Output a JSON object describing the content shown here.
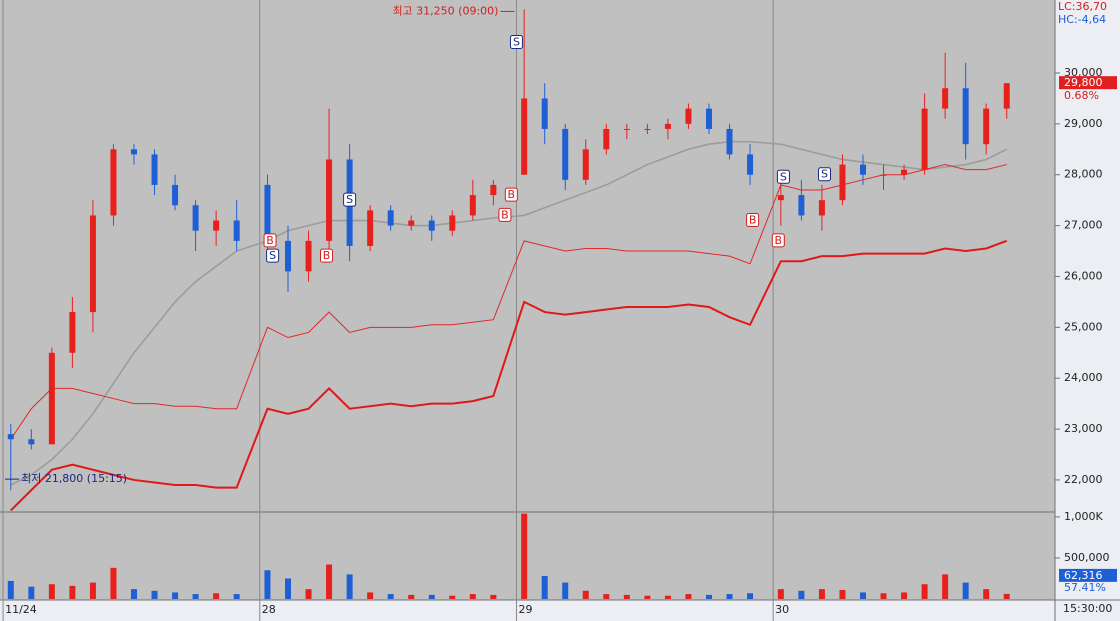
{
  "chart_data": {
    "type": "candlestick",
    "x": [
      0.03,
      0.11,
      0.19,
      0.27,
      0.35,
      0.43,
      0.51,
      0.59,
      0.67,
      0.75,
      0.83,
      0.91,
      1.03,
      1.11,
      1.19,
      1.27,
      1.35,
      1.43,
      1.51,
      1.59,
      1.67,
      1.75,
      1.83,
      1.91,
      2.03,
      2.11,
      2.19,
      2.27,
      2.35,
      2.43,
      2.51,
      2.59,
      2.67,
      2.75,
      2.83,
      2.91,
      3.03,
      3.11,
      3.19,
      3.27,
      3.35,
      3.43,
      3.51,
      3.59,
      3.67,
      3.75,
      3.83,
      3.91
    ],
    "open": [
      22900,
      22800,
      22700,
      24500,
      25300,
      27200,
      28500,
      28400,
      27800,
      27400,
      26900,
      27100,
      27800,
      26700,
      26100,
      26700,
      28300,
      26600,
      27300,
      27000,
      27100,
      26900,
      27200,
      27600,
      28000,
      29500,
      28900,
      27900,
      28500,
      28900,
      28900,
      28900,
      29000,
      29300,
      28900,
      28400,
      27500,
      27600,
      27200,
      27500,
      28200,
      28000,
      28000,
      28100,
      29300,
      29700,
      28600,
      29300
    ],
    "high": [
      23100,
      23000,
      24600,
      25600,
      27500,
      28600,
      28600,
      28500,
      28000,
      27500,
      27300,
      27500,
      28000,
      27000,
      26900,
      29300,
      28600,
      27400,
      27400,
      27200,
      27200,
      27300,
      27900,
      27900,
      31250,
      29800,
      29000,
      28700,
      29000,
      29000,
      29000,
      29100,
      29400,
      29400,
      29000,
      28600,
      28000,
      27900,
      27800,
      28400,
      28400,
      28200,
      28200,
      29600,
      30400,
      30200,
      29400,
      29800
    ],
    "low": [
      21800,
      22600,
      22700,
      24200,
      24900,
      27000,
      28200,
      27600,
      27300,
      26500,
      26600,
      26500,
      26400,
      25700,
      25900,
      26500,
      26300,
      26500,
      26900,
      26900,
      26700,
      26800,
      27100,
      27400,
      28000,
      28600,
      27700,
      27800,
      28400,
      28700,
      28800,
      28700,
      28900,
      28800,
      28300,
      27800,
      27000,
      27100,
      26900,
      27400,
      27800,
      27700,
      27900,
      28000,
      29100,
      28300,
      28400,
      29100
    ],
    "close": [
      22800,
      22700,
      24500,
      25300,
      27200,
      28500,
      28400,
      27800,
      27400,
      26900,
      27100,
      26700,
      26700,
      26100,
      26700,
      28300,
      26600,
      27300,
      27000,
      27100,
      26900,
      27200,
      27600,
      27800,
      29500,
      28900,
      27900,
      28500,
      28900,
      28900,
      28900,
      29000,
      29300,
      28900,
      28400,
      28000,
      27600,
      27200,
      27500,
      28200,
      28000,
      28000,
      28100,
      29300,
      29700,
      28600,
      29300,
      29800
    ],
    "volume": [
      220000,
      150000,
      180000,
      160000,
      200000,
      380000,
      120000,
      100000,
      80000,
      60000,
      70000,
      60000,
      350000,
      250000,
      120000,
      420000,
      300000,
      80000,
      60000,
      50000,
      50000,
      40000,
      60000,
      50000,
      1040000,
      280000,
      200000,
      100000,
      60000,
      50000,
      40000,
      40000,
      60000,
      50000,
      60000,
      70000,
      120000,
      100000,
      120000,
      110000,
      80000,
      70000,
      80000,
      180000,
      300000,
      200000,
      120000,
      62316
    ],
    "lines": [
      {
        "color": "#9c9c9c",
        "values": [
          21900,
          22100,
          22400,
          22800,
          23300,
          23900,
          24500,
          25000,
          25500,
          25900,
          26200,
          26500,
          26700,
          26900,
          27000,
          27100,
          27100,
          27100,
          27050,
          27000,
          27000,
          27050,
          27100,
          27150,
          27200,
          27350,
          27500,
          27650,
          27800,
          28000,
          28200,
          28350,
          28500,
          28600,
          28650,
          28650,
          28600,
          28500,
          28400,
          28300,
          28250,
          28200,
          28150,
          28100,
          28150,
          28200,
          28300,
          28500
        ]
      },
      {
        "color": "#e02828",
        "values": [
          22800,
          23400,
          23800,
          23800,
          23700,
          23600,
          23500,
          23500,
          23450,
          23450,
          23400,
          23400,
          25000,
          24800,
          24900,
          25300,
          24900,
          25000,
          25000,
          25000,
          25050,
          25050,
          25100,
          25150,
          26700,
          26600,
          26500,
          26550,
          26550,
          26500,
          26500,
          26500,
          26500,
          26450,
          26400,
          26250,
          27800,
          27700,
          27700,
          27800,
          27900,
          28000,
          28000,
          28100,
          28200,
          28100,
          28100,
          28200
        ]
      },
      {
        "color": "#e01818",
        "values": [
          21400,
          21800,
          22200,
          22300,
          22200,
          22100,
          22000,
          21950,
          21900,
          21900,
          21850,
          21850,
          23400,
          23300,
          23400,
          23800,
          23400,
          23450,
          23500,
          23450,
          23500,
          23500,
          23550,
          23650,
          25500,
          25300,
          25250,
          25300,
          25350,
          25400,
          25400,
          25400,
          25450,
          25400,
          25200,
          25050,
          26300,
          26300,
          26400,
          26400,
          26450,
          26450,
          26450,
          26450,
          26550,
          26500,
          26550,
          26700
        ]
      }
    ],
    "up_color": "#e8201c",
    "down_color": "#1f5fd6",
    "signals": [
      {
        "label": "S",
        "x": 2.0,
        "price": 30600
      },
      {
        "label": "B",
        "x": 1.04,
        "price": 26700
      },
      {
        "label": "S",
        "x": 1.05,
        "price": 26400
      },
      {
        "label": "B",
        "x": 1.26,
        "price": 26400
      },
      {
        "label": "S",
        "x": 1.35,
        "price": 27500
      },
      {
        "label": "B",
        "x": 1.955,
        "price": 27200
      },
      {
        "label": "B",
        "x": 1.98,
        "price": 27600
      },
      {
        "label": "B",
        "x": 2.92,
        "price": 27100
      },
      {
        "label": "B",
        "x": 3.02,
        "price": 26700
      },
      {
        "label": "S",
        "x": 3.04,
        "price": 27950
      },
      {
        "label": "S",
        "x": 3.2,
        "price": 28000
      }
    ],
    "high_note": {
      "text": "최고 31,250 (09:00)",
      "x": 2.0,
      "price": 31250
    },
    "low_note": {
      "text": "최저 21,800 (15:15)",
      "x": 0.0,
      "price": 21800
    },
    "xlim": [
      -0.012,
      4.098
    ],
    "xticks": [
      {
        "value": 0,
        "label": "11/24"
      },
      {
        "value": 1,
        "label": "28"
      },
      {
        "value": 2,
        "label": "29"
      },
      {
        "value": 3,
        "label": "30"
      }
    ],
    "ylim": [
      21370,
      31435
    ],
    "yticks": [
      {
        "value": 22000,
        "label": "22,000"
      },
      {
        "value": 23000,
        "label": "23,000"
      },
      {
        "value": 24000,
        "label": "24,000"
      },
      {
        "value": 25000,
        "label": "25,000"
      },
      {
        "value": 26000,
        "label": "26,000"
      },
      {
        "value": 27000,
        "label": "27,000"
      },
      {
        "value": 28000,
        "label": "28,000"
      },
      {
        "value": 29000,
        "label": "29,000"
      },
      {
        "value": 30000,
        "label": "30,000"
      }
    ],
    "volume_ylim": [
      0,
      1060000
    ],
    "volume_yticks": [
      {
        "value": 1000000,
        "label": "1,000K"
      },
      {
        "value": 500000,
        "label": "500,000"
      }
    ],
    "lc_label": "LC:36,70",
    "hc_label": "HC:-4,64",
    "last_price_label": "29,800",
    "last_change": "0.68%",
    "last_volume_label": "62,316",
    "volume_ratio": "57.41%",
    "time_label": "15:30:00"
  }
}
